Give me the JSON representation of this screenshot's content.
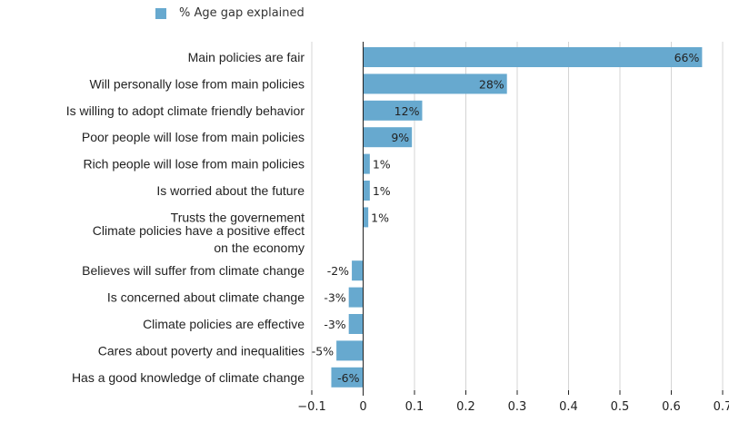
{
  "chart_data": {
    "type": "bar",
    "orientation": "horizontal",
    "legend": {
      "entries": [
        "% Age gap explained"
      ],
      "placement": "top-left"
    },
    "series": [
      {
        "name": "% Age gap explained",
        "color": "#67a9cf"
      }
    ],
    "categories": [
      "Main policies are fair",
      "Will personally lose from main policies",
      "Is willing to adopt climate friendly behavior",
      "Poor people will lose from main policies",
      "Rich people will lose from main policies",
      "Is worried about the future",
      "Trusts the governement",
      "Climate policies have a positive effect\non the economy",
      "Believes will suffer from climate change",
      "Is concerned about climate change",
      "Climate policies are effective",
      "Cares about poverty and inequalities",
      "Has a good knowledge of climate change"
    ],
    "values": [
      0.66,
      0.28,
      0.115,
      0.095,
      0.013,
      0.013,
      0.01,
      0.0,
      -0.022,
      -0.028,
      -0.028,
      -0.052,
      -0.062
    ],
    "data_labels": [
      "66%",
      "28%",
      "12%",
      "9%",
      "1%",
      "1%",
      "1%",
      "",
      "-2%",
      "-3%",
      "-3%",
      "-5%",
      "-6%"
    ],
    "xlim": [
      -0.1,
      0.7
    ],
    "xticks": [
      "−0.1",
      "0",
      "0.1",
      "0.2",
      "0.3",
      "0.4",
      "0.5",
      "0.6",
      "0.7"
    ],
    "xtick_values": [
      -0.1,
      0,
      0.1,
      0.2,
      0.3,
      0.4,
      0.5,
      0.6,
      0.7
    ],
    "grid": "vertical",
    "title": "",
    "xlabel": "",
    "ylabel": ""
  }
}
